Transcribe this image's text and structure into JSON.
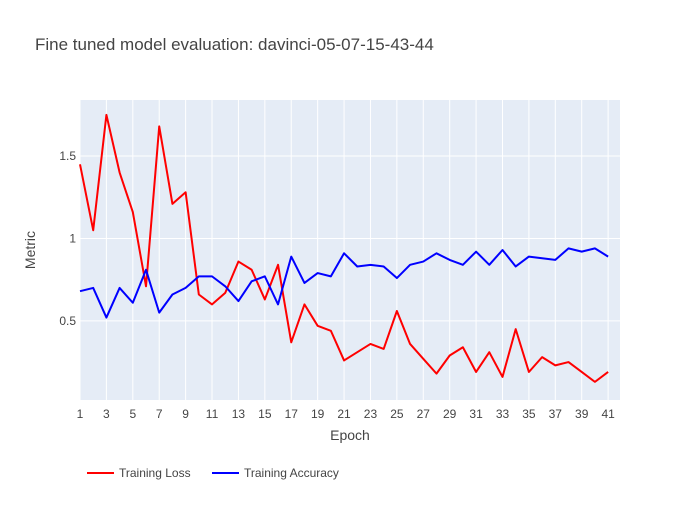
{
  "chart_data": {
    "type": "line",
    "title": "Fine tuned model evaluation: davinci-05-07-15-43-44",
    "xlabel": "Epoch",
    "ylabel": "Metric",
    "x": [
      1,
      2,
      3,
      4,
      5,
      6,
      7,
      8,
      9,
      10,
      11,
      12,
      13,
      14,
      15,
      16,
      17,
      18,
      19,
      20,
      21,
      22,
      23,
      24,
      25,
      26,
      27,
      28,
      29,
      30,
      31,
      32,
      33,
      34,
      35,
      36,
      37,
      38,
      39,
      40,
      41
    ],
    "xlim": [
      1,
      41.9
    ],
    "ylim": [
      0.02,
      1.84
    ],
    "x_ticks": [
      1,
      3,
      5,
      7,
      9,
      11,
      13,
      15,
      17,
      19,
      21,
      23,
      25,
      27,
      29,
      31,
      33,
      35,
      37,
      39,
      41
    ],
    "x_tick_labels": [
      "1",
      "3",
      "5",
      "7",
      "9",
      "11",
      "13",
      "15",
      "17",
      "19",
      "21",
      "23",
      "25",
      "27",
      "29",
      "31",
      "33",
      "35",
      "37",
      "39",
      "41"
    ],
    "y_ticks": [
      0.5,
      1,
      1.5
    ],
    "y_tick_labels": [
      "0.5",
      "1",
      "1.5"
    ],
    "grid": true,
    "legend_placement": "bottom-left, horizontal",
    "background_color": "#e5ecf6",
    "series": [
      {
        "name": "Training Loss",
        "color": "#ff0000",
        "values": [
          1.45,
          1.05,
          1.75,
          1.4,
          1.16,
          0.71,
          1.68,
          1.21,
          1.28,
          0.66,
          0.6,
          0.67,
          0.86,
          0.81,
          0.63,
          0.84,
          0.37,
          0.6,
          0.47,
          0.44,
          0.26,
          0.31,
          0.36,
          0.33,
          0.56,
          0.36,
          0.27,
          0.18,
          0.29,
          0.34,
          0.19,
          0.31,
          0.16,
          0.45,
          0.19,
          0.28,
          0.23,
          0.25,
          0.19,
          0.13,
          0.19
        ]
      },
      {
        "name": "Training Accuracy",
        "color": "#0000ff",
        "values": [
          0.68,
          0.7,
          0.52,
          0.7,
          0.61,
          0.81,
          0.55,
          0.66,
          0.7,
          0.77,
          0.77,
          0.71,
          0.62,
          0.74,
          0.77,
          0.6,
          0.89,
          0.73,
          0.79,
          0.77,
          0.91,
          0.83,
          0.84,
          0.83,
          0.76,
          0.84,
          0.86,
          0.91,
          0.87,
          0.84,
          0.92,
          0.84,
          0.93,
          0.83,
          0.89,
          0.88,
          0.87,
          0.94,
          0.92,
          0.94,
          0.89
        ]
      }
    ]
  }
}
